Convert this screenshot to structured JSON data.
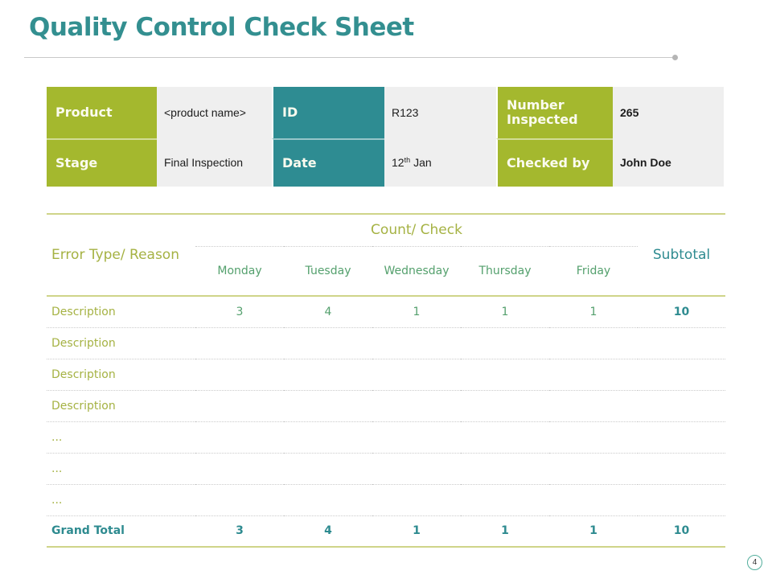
{
  "slide": {
    "title": "Quality Control Check Sheet",
    "page_number": "4"
  },
  "colors": {
    "title_teal": "#338F90",
    "green_cell": "#A4B82E",
    "teal_cell": "#2E8C92",
    "value_bg": "#EFEFEF",
    "olive_text": "#A5B243",
    "day_green": "#54A06D",
    "teal_text": "#2E8B90",
    "olive_border": "#CFD489",
    "dotted_gray": "#CBCBCB",
    "hairline_gray": "#C9C9C9",
    "page_circle": "#52AE9C"
  },
  "info_table": {
    "product": {
      "label": "Product",
      "value": "<product name>"
    },
    "id": {
      "label": "ID",
      "value": "R123"
    },
    "number_inspected": {
      "label": "Number Inspected",
      "value": "265"
    },
    "stage": {
      "label": "Stage",
      "value": "Final Inspection"
    },
    "date": {
      "label": "Date",
      "day": "12",
      "ordinal": "th",
      "month": "Jan"
    },
    "checked_by": {
      "label": "Checked by",
      "value": "John Doe"
    }
  },
  "check_table": {
    "row_header": "Error Type/ Reason",
    "group_header": "Count/ Check",
    "day_headers": [
      "Monday",
      "Tuesday",
      "Wednesday",
      "Thursday",
      "Friday"
    ],
    "subtotal_header": "Subtotal",
    "rows": [
      {
        "type": "data",
        "label": "Description",
        "values": [
          "3",
          "4",
          "1",
          "1",
          "1"
        ],
        "subtotal": "10"
      },
      {
        "type": "data",
        "label": "Description",
        "values": [
          "",
          "",
          "",
          "",
          ""
        ],
        "subtotal": ""
      },
      {
        "type": "data",
        "label": "Description",
        "values": [
          "",
          "",
          "",
          "",
          ""
        ],
        "subtotal": ""
      },
      {
        "type": "data",
        "label": "Description",
        "values": [
          "",
          "",
          "",
          "",
          ""
        ],
        "subtotal": ""
      },
      {
        "type": "data",
        "label": "...",
        "values": [
          "",
          "",
          "",
          "",
          ""
        ],
        "subtotal": ""
      },
      {
        "type": "data",
        "label": "...",
        "values": [
          "",
          "",
          "",
          "",
          ""
        ],
        "subtotal": ""
      },
      {
        "type": "data",
        "label": "...",
        "values": [
          "",
          "",
          "",
          "",
          ""
        ],
        "subtotal": ""
      },
      {
        "type": "total",
        "label": "Grand Total",
        "values": [
          "3",
          "4",
          "1",
          "1",
          "1"
        ],
        "subtotal": "10"
      }
    ]
  }
}
